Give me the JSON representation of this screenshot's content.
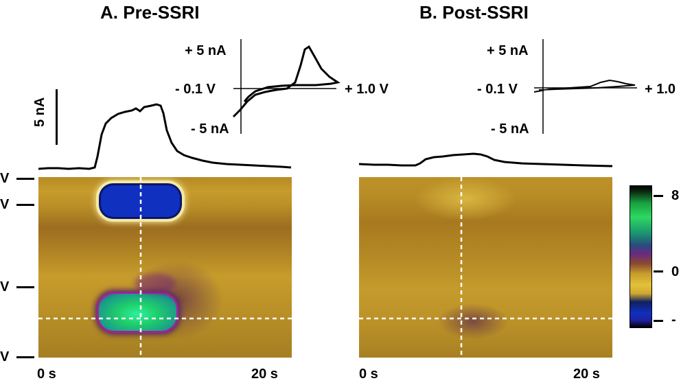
{
  "panels": [
    {
      "title": "A. Pre-SSRI",
      "cv": {
        "y_top": "+ 5 nA",
        "y_mid": "- 0.1 V",
        "y_bot": "- 5 nA",
        "x_right": "+ 1.0 V"
      },
      "scale_bar": "5 nA",
      "x_start": "0 s",
      "x_end": "20 s"
    },
    {
      "title": "B. Post-SSRI",
      "cv": {
        "y_top": "+ 5 nA",
        "y_mid": "- 0.1 V",
        "y_bot": "- 5 nA",
        "x_right": "+ 1.0"
      },
      "x_start": "0 s",
      "x_end": "20 s"
    }
  ],
  "y_axis_ticks": [
    "V",
    "V",
    "V",
    "V"
  ],
  "colorbar": {
    "top": "8",
    "mid": "0",
    "bottom": "-"
  },
  "colors": {
    "background_gold": "#c49a2a",
    "oxidation_green": "#1fd06a",
    "reduction_blue": "#1030c0",
    "marker_line": "#ffffff"
  }
}
